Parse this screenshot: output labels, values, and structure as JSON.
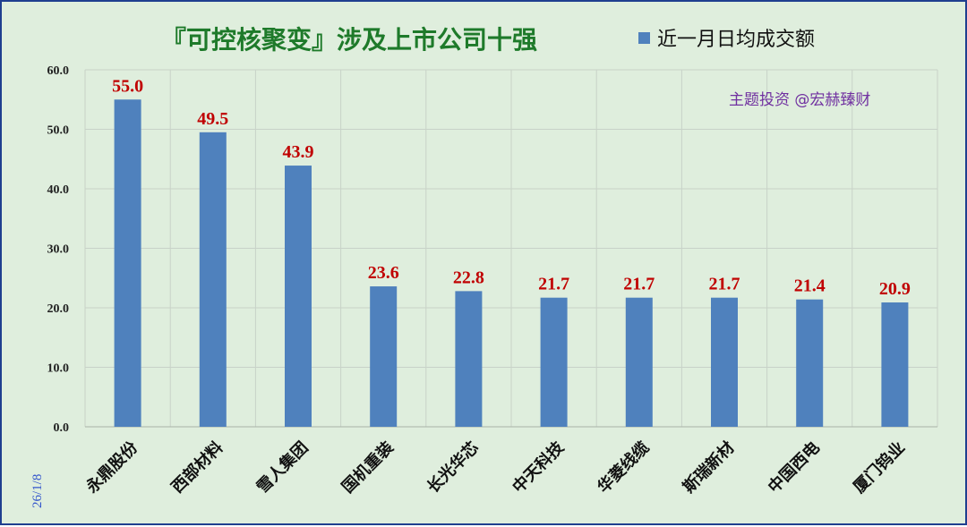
{
  "chart_data": {
    "type": "bar",
    "title": "『可控核聚变』涉及上市公司十强",
    "categories": [
      "永鼎股份",
      "西部材料",
      "雪人集团",
      "国机重装",
      "长光华芯",
      "中天科技",
      "华菱线缆",
      "斯瑞新材",
      "中国西电",
      "厦门钨业"
    ],
    "series": [
      {
        "name": "近一月日均成交额",
        "values": [
          55.0,
          49.5,
          43.9,
          23.6,
          22.8,
          21.7,
          21.7,
          21.7,
          21.4,
          20.9
        ]
      }
    ],
    "yticks": [
      "0.0",
      "10.0",
      "20.0",
      "30.0",
      "40.0",
      "50.0",
      "60.0"
    ],
    "ylim": [
      0,
      60
    ],
    "grid": true,
    "legend_position": "top-right",
    "annotation": "主题投资 @宏赫臻财",
    "date_label": "26/1/8"
  },
  "colors": {
    "background": "#dfeedd",
    "border": "#1f3f8f",
    "bar": "#4f81bd",
    "title": "#1e7a2a",
    "value_label": "#c00000",
    "annotation": "#7030a0",
    "date": "#3355cc",
    "grid": "#c8d2c8"
  }
}
